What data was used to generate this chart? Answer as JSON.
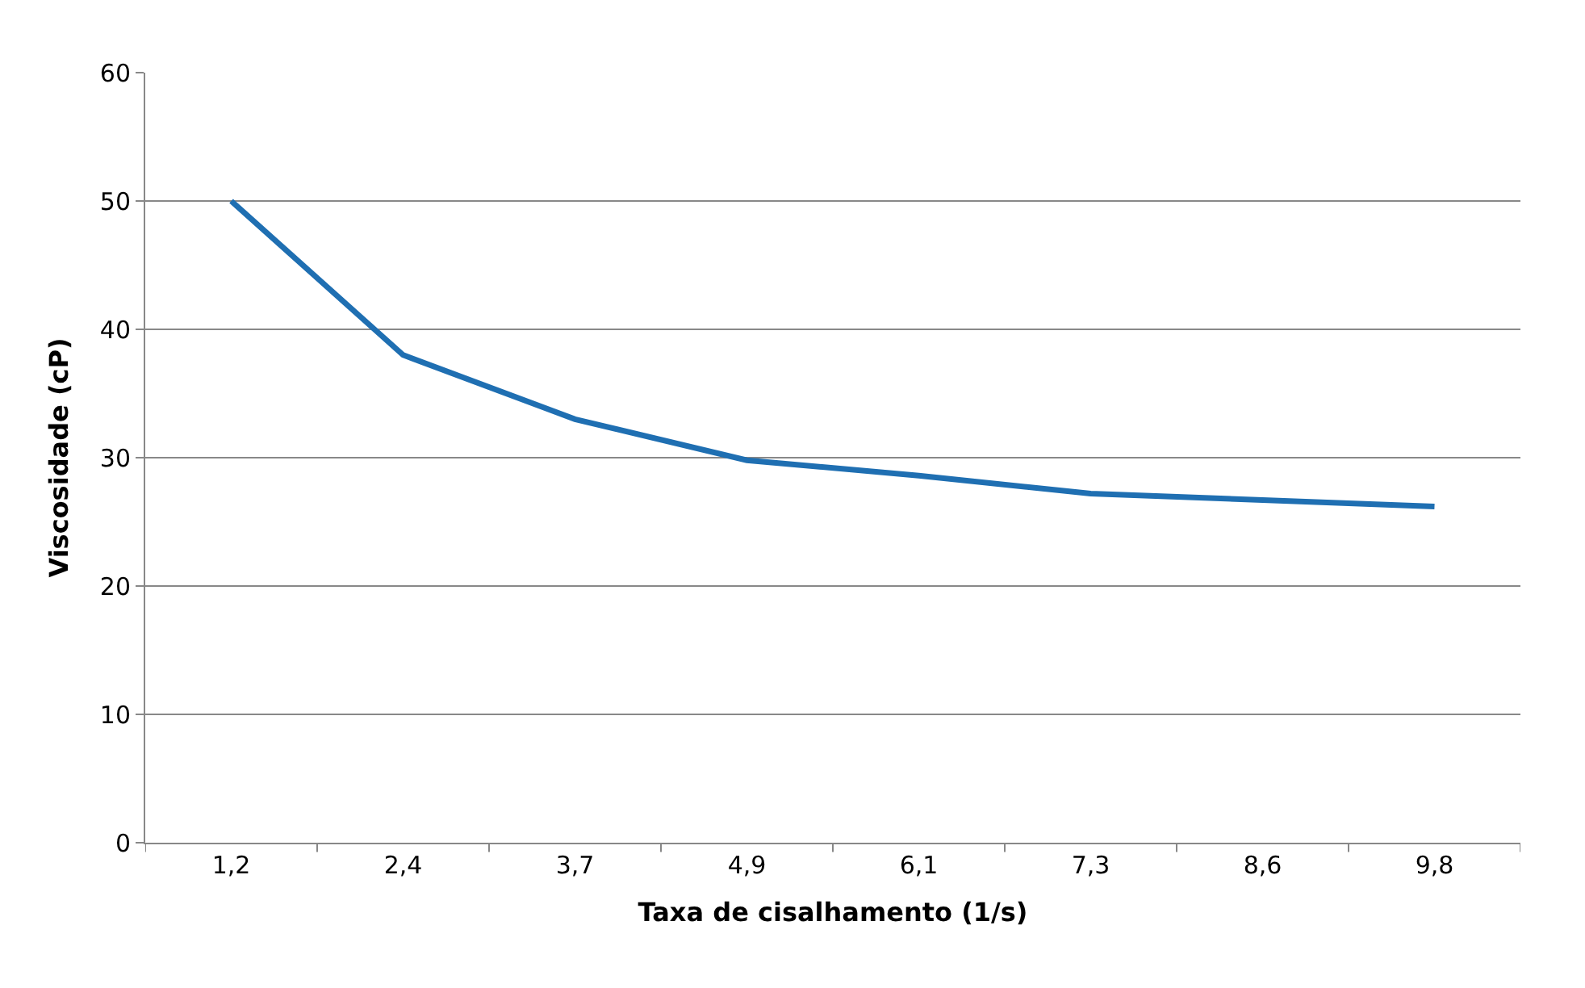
{
  "chart_data": {
    "type": "line",
    "xlabel": "Taxa de cisalhamento (1/s)",
    "ylabel": "Viscosidade (cP)",
    "categories": [
      "1,2",
      "2,4",
      "3,7",
      "4,9",
      "6,1",
      "7,3",
      "8,6",
      "9,8"
    ],
    "series": [
      {
        "color": "#1f6fb2",
        "values": [
          50,
          38,
          33,
          29.8,
          28.6,
          27.2,
          26.7,
          26.2
        ]
      }
    ],
    "ylim": [
      0,
      60
    ],
    "yticks": [
      0,
      10,
      20,
      30,
      40,
      50,
      60
    ],
    "grid": "y",
    "marker": "none",
    "line_style": "solid"
  }
}
